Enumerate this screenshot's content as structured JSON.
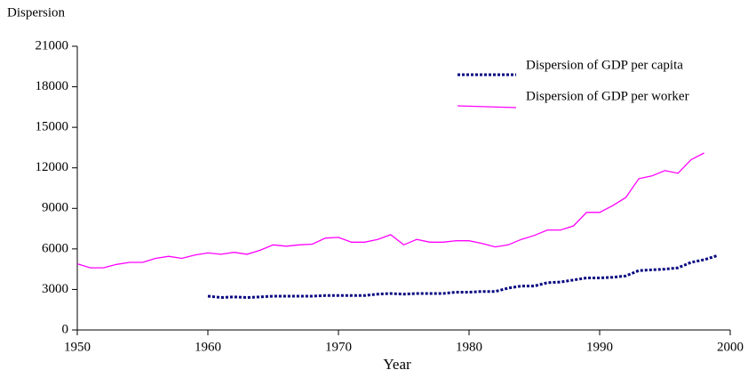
{
  "chart_data": {
    "type": "line",
    "y_label": "Dispersion",
    "x_label": "Year",
    "xlim": [
      1950,
      2000
    ],
    "xticks": [
      1950,
      1960,
      1970,
      1980,
      1990,
      2000
    ],
    "ylim": [
      0,
      21000
    ],
    "yticks": [
      0,
      3000,
      6000,
      9000,
      12000,
      15000,
      18000,
      21000
    ],
    "grid": false,
    "legend": "upper right",
    "series": [
      {
        "name": "Dispersion of GDP per capita",
        "color": "#000080",
        "line_style": "dotted",
        "x": [
          1960,
          1961,
          1962,
          1963,
          1964,
          1965,
          1966,
          1967,
          1968,
          1969,
          1970,
          1971,
          1972,
          1973,
          1974,
          1975,
          1976,
          1977,
          1978,
          1979,
          1980,
          1981,
          1982,
          1983,
          1984,
          1985,
          1986,
          1987,
          1988,
          1989,
          1990,
          1991,
          1992,
          1993,
          1994,
          1995,
          1996,
          1997,
          1998,
          1999
        ],
        "values": [
          2500,
          2400,
          2450,
          2400,
          2450,
          2500,
          2500,
          2500,
          2500,
          2550,
          2550,
          2550,
          2550,
          2650,
          2700,
          2650,
          2700,
          2700,
          2700,
          2800,
          2800,
          2850,
          2850,
          3100,
          3250,
          3250,
          3500,
          3550,
          3700,
          3850,
          3850,
          3900,
          4000,
          4400,
          4450,
          4500,
          4600,
          5000,
          5200,
          5500
        ]
      },
      {
        "name": "Dispersion of GDP per worker",
        "color": "#ff00ff",
        "line_style": "solid",
        "x": [
          1950,
          1951,
          1952,
          1953,
          1954,
          1955,
          1956,
          1957,
          1958,
          1959,
          1960,
          1961,
          1962,
          1963,
          1964,
          1965,
          1966,
          1967,
          1968,
          1969,
          1970,
          1971,
          1972,
          1973,
          1974,
          1975,
          1976,
          1977,
          1978,
          1979,
          1980,
          1981,
          1982,
          1983,
          1984,
          1985,
          1986,
          1987,
          1988,
          1989,
          1990,
          1991,
          1992,
          1993,
          1994,
          1995,
          1996,
          1997,
          1998
        ],
        "values": [
          4900,
          4600,
          4600,
          4850,
          5000,
          5000,
          5300,
          5450,
          5300,
          5550,
          5700,
          5600,
          5750,
          5600,
          5900,
          6300,
          6200,
          6300,
          6350,
          6800,
          6850,
          6500,
          6500,
          6700,
          7050,
          6300,
          6700,
          6500,
          6500,
          6600,
          6600,
          6400,
          6150,
          6300,
          6700,
          7000,
          7400,
          7400,
          7700,
          8700,
          8700,
          9200,
          9800,
          11200,
          11400,
          11800,
          11600,
          12600,
          13100
        ]
      }
    ]
  }
}
